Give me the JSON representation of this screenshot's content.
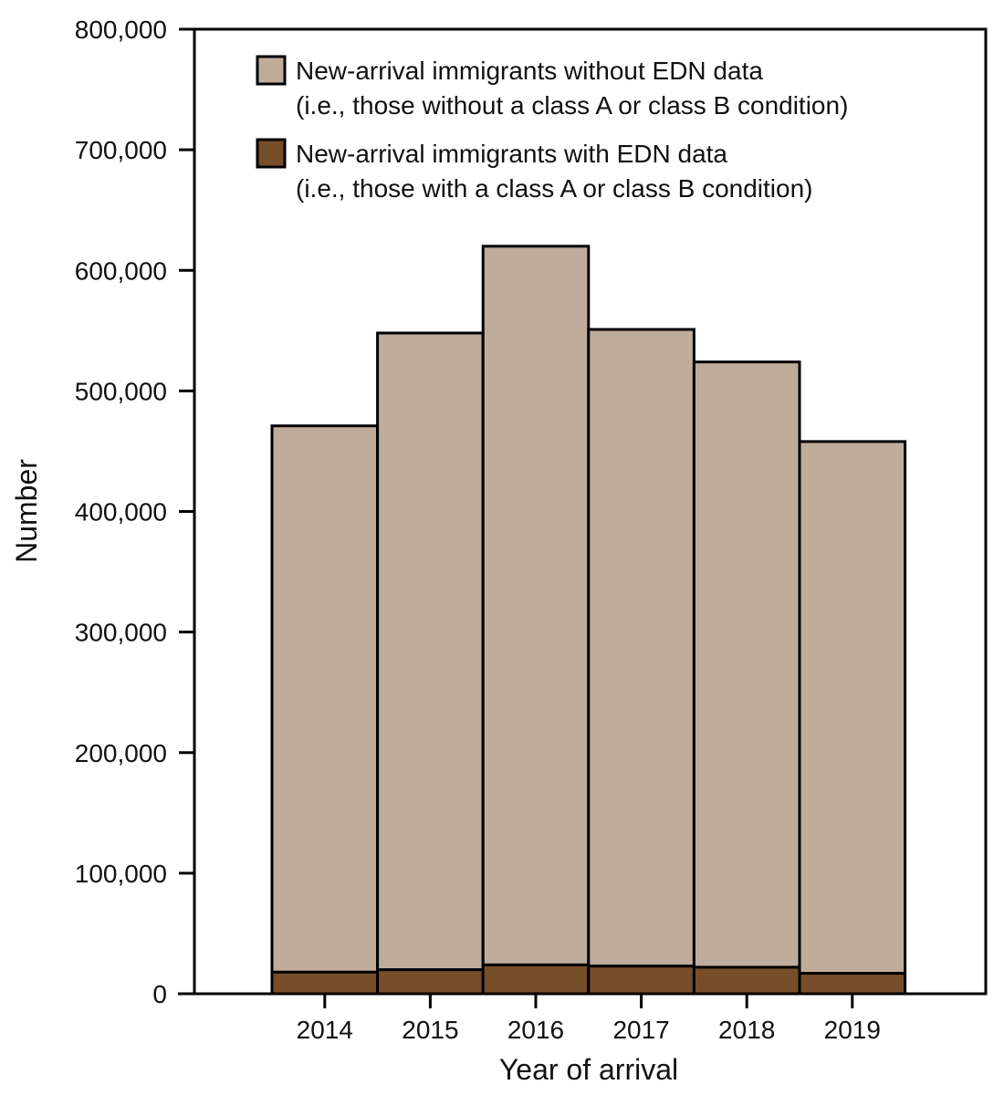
{
  "chart_data": {
    "type": "bar",
    "stacked": true,
    "xlabel": "Year of arrival",
    "ylabel": "Number",
    "ylim": [
      0,
      800000
    ],
    "yticks": [
      0,
      100000,
      200000,
      300000,
      400000,
      500000,
      600000,
      700000,
      800000
    ],
    "ytick_labels": [
      "0",
      "100,000",
      "200,000",
      "300,000",
      "400,000",
      "500,000",
      "600,000",
      "700,000",
      "800,000"
    ],
    "categories": [
      "2014",
      "2015",
      "2016",
      "2017",
      "2018",
      "2019"
    ],
    "legend_position": "top",
    "series": [
      {
        "name": "New-arrival immigrants with EDN data",
        "name_line2": "(i.e., those with a class A or class B condition)",
        "color": "#774E2A",
        "values": [
          18000,
          20000,
          24000,
          23000,
          22000,
          17000
        ]
      },
      {
        "name": "New-arrival immigrants without EDN data",
        "name_line2": "(i.e., those without a class A or class B condition)",
        "color": "#BFAC9B",
        "values": [
          453000,
          528000,
          596000,
          528000,
          502000,
          441000
        ]
      }
    ],
    "grid": false
  }
}
